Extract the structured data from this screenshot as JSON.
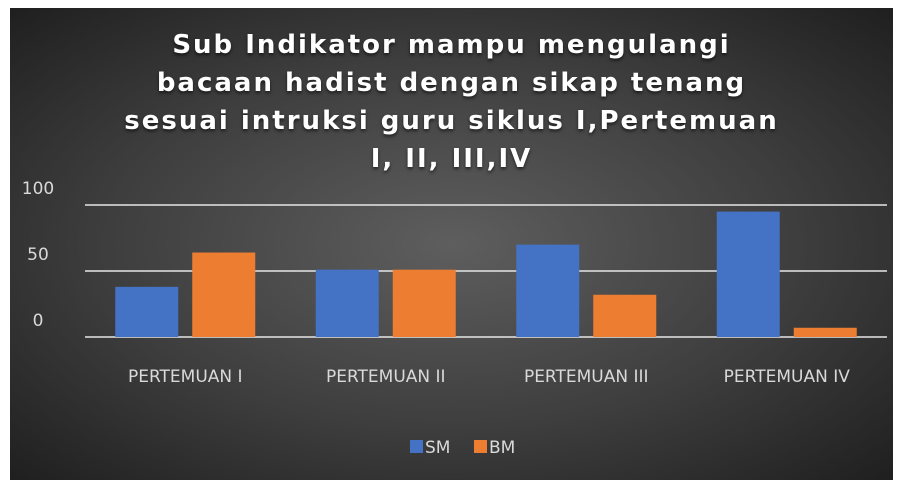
{
  "chart_data": {
    "type": "bar",
    "title": "Sub Indikator mampu mengulangi bacaan hadist dengan sikap tenang sesuai intruksi guru siklus I,Pertemuan I, II, III,IV",
    "categories": [
      "PERTEMUAN I",
      "PERTEMUAN II",
      "PERTEMUAN III",
      "PERTEMUAN IV"
    ],
    "series": [
      {
        "name": "SM",
        "color": "#4472c4",
        "values": [
          38,
          51,
          70,
          95
        ]
      },
      {
        "name": "BM",
        "color": "#ed7d31",
        "values": [
          64,
          51,
          32,
          7
        ]
      }
    ],
    "ylim": [
      0,
      100
    ],
    "yticks": [
      0,
      50,
      100
    ],
    "grid": true,
    "legend": "bottom"
  }
}
